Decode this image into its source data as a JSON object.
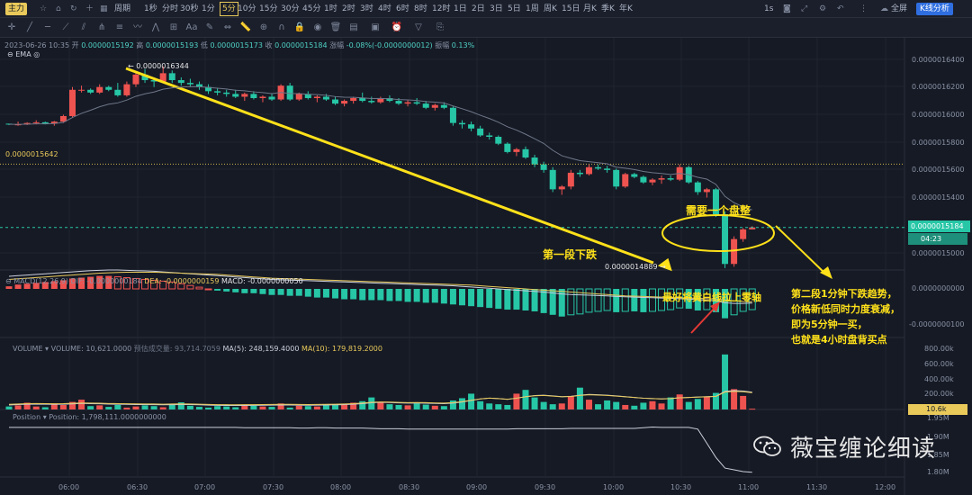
{
  "toolbar": {
    "brand": "主力",
    "period_label": "周期",
    "intervals": [
      "1秒",
      "分时",
      "30秒",
      "1分",
      "5分",
      "10分",
      "15分",
      "30分",
      "45分",
      "1时",
      "2时",
      "3时",
      "4时",
      "6时",
      "8时",
      "12时",
      "1日",
      "2日",
      "3日",
      "5日",
      "1周",
      "周K",
      "15日",
      "月K",
      "季K",
      "年K"
    ],
    "active_interval": "5分",
    "right_interval": "1s",
    "fullscreen_label": "全屏",
    "kline_analysis_label": "K线分析"
  },
  "tools": {
    "indicator_label": "Aa"
  },
  "header": {
    "datetime": "2023-06-26 10:35",
    "open_label": "开",
    "open": "0.0000015192",
    "high_label": "高",
    "high": "0.0000015193",
    "low_label": "低",
    "low": "0.0000015173",
    "close_label": "收",
    "close": "0.0000015184",
    "change_label": "涨幅",
    "change": "-0.08%(-0.0000000012)",
    "amplitude_label": "振幅",
    "amplitude": "0.13%",
    "ema_label": "EMA"
  },
  "price_axis": {
    "ticks": [
      "0.0000016400",
      "0.0000016200",
      "0.0000016000",
      "0.0000015800",
      "0.0000015600",
      "0.0000015400",
      "0.0000015184",
      "0.0000015000"
    ],
    "current_price": "0.0000015184",
    "countdown": "04:23",
    "hline_label": "0.0000015642",
    "high_marker": "← 0.0000016344",
    "low_marker": "0.0000014889 →"
  },
  "macd": {
    "title": "MACD(12,26,9)",
    "dif": "DIF: -0.0000000184",
    "dea": "DEA: -0.0000000159",
    "macd": "MACD: -0.0000000050",
    "ticks": [
      "0.0000000000",
      "-0.0000000100"
    ]
  },
  "volume": {
    "title": "VOLUME",
    "volume": "VOLUME: 10,621.0000",
    "est": "预估成交量: 93,714.7059",
    "ma5": "MA(5): 248,159.4000",
    "ma10": "MA(10): 179,819.2000",
    "ticks": [
      "800.00k",
      "600.00k",
      "400.00k",
      "200.00k"
    ],
    "current": "10.6k"
  },
  "position": {
    "title": "Position",
    "value": "Position: 1,798,111.0000000000",
    "ticks": [
      "1.95M",
      "1.90M",
      "1.85M",
      "1.80M"
    ]
  },
  "time_axis": [
    "06:00",
    "06:30",
    "07:00",
    "07:30",
    "08:00",
    "08:30",
    "09:00",
    "09:30",
    "10:00",
    "10:30",
    "11:00",
    "11:30",
    "12:00"
  ],
  "annotations": {
    "first_drop": "第一段下跌",
    "need_consolidation": "需要一个盘整",
    "zero_axis": "最好将黄白线拉上零轴",
    "second_line1": "第二段1分钟下跌趋势，",
    "second_line2": "价格新低同时力度衰减，",
    "second_line3": "即为5分钟一买，",
    "second_line4": "也就是4小时盘背买点"
  },
  "watermark": "薇宝缠论细读",
  "colors": {
    "up": "#ef5350",
    "down": "#26c6a6",
    "annotation": "#ffe11a",
    "brand": "#e8c95a",
    "active": "#2f6ee0"
  },
  "chart_data": {
    "type": "candlestick",
    "interval": "5分",
    "candles": [
      [
        1.5935,
        1.5935,
        1.5925,
        1.593
      ],
      [
        1.593,
        1.595,
        1.592,
        1.593
      ],
      [
        1.593,
        1.5945,
        1.5925,
        1.594
      ],
      [
        1.594,
        1.596,
        1.593,
        1.5945
      ],
      [
        1.5945,
        1.595,
        1.593,
        1.5935
      ],
      [
        1.5935,
        1.5955,
        1.592,
        1.595
      ],
      [
        1.595,
        1.6,
        1.594,
        1.599
      ],
      [
        1.599,
        1.62,
        1.598,
        1.618
      ],
      [
        1.618,
        1.621,
        1.616,
        1.618
      ],
      [
        1.618,
        1.619,
        1.615,
        1.616
      ],
      [
        1.616,
        1.622,
        1.615,
        1.62
      ],
      [
        1.62,
        1.621,
        1.617,
        1.618
      ],
      [
        1.618,
        1.623,
        1.613,
        1.614
      ],
      [
        1.614,
        1.624,
        1.613,
        1.622
      ],
      [
        1.622,
        1.63,
        1.62,
        1.629
      ],
      [
        1.629,
        1.633,
        1.623,
        1.625
      ],
      [
        1.625,
        1.627,
        1.62,
        1.624
      ],
      [
        1.624,
        1.635,
        1.623,
        1.63
      ],
      [
        1.63,
        1.632,
        1.623,
        1.625
      ],
      [
        1.625,
        1.627,
        1.621,
        1.623
      ],
      [
        1.623,
        1.626,
        1.62,
        1.622
      ],
      [
        1.622,
        1.624,
        1.618,
        1.62
      ],
      [
        1.62,
        1.622,
        1.615,
        1.617
      ],
      [
        1.617,
        1.619,
        1.614,
        1.616
      ],
      [
        1.616,
        1.618,
        1.613,
        1.615
      ],
      [
        1.615,
        1.618,
        1.612,
        1.613
      ],
      [
        1.613,
        1.616,
        1.61,
        1.615
      ],
      [
        1.615,
        1.617,
        1.611,
        1.612
      ],
      [
        1.612,
        1.614,
        1.609,
        1.613
      ],
      [
        1.613,
        1.615,
        1.61,
        1.611
      ],
      [
        1.611,
        1.622,
        1.61,
        1.621
      ],
      [
        1.621,
        1.623,
        1.61,
        1.611
      ],
      [
        1.611,
        1.616,
        1.61,
        1.615
      ],
      [
        1.615,
        1.617,
        1.611,
        1.612
      ],
      [
        1.612,
        1.614,
        1.609,
        1.613
      ],
      [
        1.613,
        1.615,
        1.61,
        1.611
      ],
      [
        1.611,
        1.613,
        1.607,
        1.608
      ],
      [
        1.608,
        1.611,
        1.606,
        1.61
      ],
      [
        1.61,
        1.613,
        1.608,
        1.612
      ],
      [
        1.612,
        1.616,
        1.609,
        1.61
      ],
      [
        1.61,
        1.613,
        1.608,
        1.609
      ],
      [
        1.609,
        1.613,
        1.608,
        1.612
      ],
      [
        1.612,
        1.614,
        1.609,
        1.61
      ],
      [
        1.61,
        1.612,
        1.607,
        1.608
      ],
      [
        1.608,
        1.611,
        1.606,
        1.609
      ],
      [
        1.609,
        1.612,
        1.607,
        1.608
      ],
      [
        1.608,
        1.61,
        1.604,
        1.605
      ],
      [
        1.605,
        1.608,
        1.603,
        1.607
      ],
      [
        1.607,
        1.609,
        1.604,
        1.605
      ],
      [
        1.605,
        1.606,
        1.592,
        1.594
      ],
      [
        1.594,
        1.596,
        1.59,
        1.593
      ],
      [
        1.593,
        1.595,
        1.588,
        1.59
      ],
      [
        1.59,
        1.592,
        1.584,
        1.585
      ],
      [
        1.585,
        1.587,
        1.582,
        1.584
      ],
      [
        1.584,
        1.585,
        1.578,
        1.579
      ],
      [
        1.579,
        1.58,
        1.572,
        1.573
      ],
      [
        1.573,
        1.576,
        1.57,
        1.575
      ],
      [
        1.575,
        1.577,
        1.568,
        1.569
      ],
      [
        1.569,
        1.571,
        1.562,
        1.564
      ],
      [
        1.564,
        1.566,
        1.558,
        1.56
      ],
      [
        1.56,
        1.562,
        1.544,
        1.546
      ],
      [
        1.546,
        1.549,
        1.542,
        1.548
      ],
      [
        1.548,
        1.56,
        1.546,
        1.558
      ],
      [
        1.558,
        1.56,
        1.555,
        1.557
      ],
      [
        1.557,
        1.564,
        1.556,
        1.562
      ],
      [
        1.562,
        1.564,
        1.56,
        1.561
      ],
      [
        1.561,
        1.563,
        1.558,
        1.56
      ],
      [
        1.56,
        1.561,
        1.546,
        1.548
      ],
      [
        1.548,
        1.558,
        1.547,
        1.557
      ],
      [
        1.557,
        1.558,
        1.554,
        1.555
      ],
      [
        1.555,
        1.556,
        1.55,
        1.551
      ],
      [
        1.551,
        1.554,
        1.549,
        1.553
      ],
      [
        1.553,
        1.556,
        1.55,
        1.554
      ],
      [
        1.554,
        1.556,
        1.552,
        1.553
      ],
      [
        1.553,
        1.564,
        1.552,
        1.562
      ],
      [
        1.562,
        1.563,
        1.55,
        1.551
      ],
      [
        1.551,
        1.552,
        1.542,
        1.544
      ],
      [
        1.544,
        1.547,
        1.54,
        1.546
      ],
      [
        1.546,
        1.547,
        1.526,
        1.528
      ],
      [
        1.528,
        1.53,
        1.489,
        1.492
      ],
      [
        1.492,
        1.512,
        1.49,
        1.51
      ],
      [
        1.51,
        1.518,
        1.508,
        1.517
      ],
      [
        1.517,
        1.5193,
        1.5173,
        1.5184
      ]
    ],
    "macd_hist": [
      0.3,
      0.5,
      0.6,
      0.7,
      0.8,
      0.9,
      1.0,
      1.2,
      1.3,
      1.4,
      1.5,
      1.5,
      1.4,
      1.3,
      1.2,
      1.1,
      1.0,
      0.9,
      0.8,
      0.6,
      0.4,
      0.2,
      0.0,
      -0.2,
      -0.3,
      -0.4,
      -0.5,
      -0.5,
      -0.6,
      -0.7,
      -0.7,
      -0.8,
      -0.8,
      -0.9,
      -1.0,
      -1.0,
      -1.1,
      -1.2,
      -1.2,
      -1.3,
      -1.3,
      -1.3,
      -1.4,
      -1.4,
      -1.5,
      -1.5,
      -1.6,
      -1.6,
      -1.7,
      -1.8,
      -1.9,
      -2.0,
      -2.1,
      -2.2,
      -2.3,
      -2.4,
      -2.4,
      -2.5,
      -2.6,
      -2.8,
      -3.0,
      -3.2,
      -3.0,
      -2.9,
      -2.7,
      -2.6,
      -2.5,
      -2.7,
      -2.6,
      -2.6,
      -2.7,
      -2.6,
      -2.5,
      -2.4,
      -2.2,
      -2.3,
      -2.5,
      -2.4,
      -2.7,
      -3.4,
      -3.0,
      -2.6,
      -2.4
    ],
    "macd_dif": [
      4.0,
      4.2,
      4.4,
      4.6,
      4.8,
      5.0,
      5.2,
      5.4,
      5.6,
      5.8,
      5.9,
      6.0,
      6.0,
      5.9,
      5.8,
      5.7,
      5.6,
      5.4,
      5.2,
      5.0,
      4.8,
      4.6,
      4.4,
      4.2,
      4.0,
      3.8,
      3.6,
      3.4,
      3.2,
      3.0,
      2.9,
      2.8,
      2.7,
      2.6,
      2.5,
      2.4,
      2.3,
      2.2,
      2.1,
      2.0,
      1.9,
      1.8,
      1.7,
      1.6,
      1.5,
      1.4,
      1.3,
      1.2,
      1.1,
      1.0,
      0.8,
      0.6,
      0.4,
      0.2,
      0.0,
      -0.2,
      -0.4,
      -0.6,
      -0.8,
      -1.0,
      -1.3,
      -1.6,
      -1.8,
      -1.9,
      -2.0,
      -2.1,
      -2.2,
      -2.4,
      -2.5,
      -2.6,
      -2.7,
      -2.8,
      -2.9,
      -3.0,
      -3.1,
      -3.2,
      -3.4,
      -3.6,
      -3.8,
      -4.4,
      -4.6,
      -4.6,
      -4.5
    ],
    "macd_dea": [
      3.0,
      3.2,
      3.4,
      3.6,
      3.8,
      4.0,
      4.2,
      4.4,
      4.6,
      4.8,
      5.0,
      5.1,
      5.2,
      5.3,
      5.3,
      5.3,
      5.3,
      5.2,
      5.1,
      5.0,
      4.9,
      4.8,
      4.7,
      4.6,
      4.4,
      4.2,
      4.0,
      3.8,
      3.6,
      3.4,
      3.3,
      3.2,
      3.1,
      3.0,
      2.9,
      2.8,
      2.7,
      2.6,
      2.5,
      2.4,
      2.3,
      2.2,
      2.1,
      2.0,
      1.9,
      1.8,
      1.7,
      1.6,
      1.5,
      1.4,
      1.3,
      1.2,
      1.0,
      0.8,
      0.6,
      0.4,
      0.2,
      0.0,
      -0.2,
      -0.4,
      -0.6,
      -0.8,
      -1.0,
      -1.2,
      -1.4,
      -1.6,
      -1.8,
      -2.0,
      -2.2,
      -2.3,
      -2.4,
      -2.5,
      -2.6,
      -2.7,
      -2.8,
      -2.9,
      -3.0,
      -3.1,
      -3.2,
      -3.5,
      -3.8,
      -4.0,
      -4.1
    ],
    "volume": [
      40,
      55,
      90,
      40,
      30,
      80,
      60,
      100,
      130,
      45,
      55,
      35,
      60,
      25,
      40,
      55,
      45,
      30,
      70,
      95,
      50,
      35,
      25,
      45,
      40,
      30,
      60,
      50,
      40,
      35,
      80,
      25,
      50,
      45,
      40,
      55,
      60,
      75,
      90,
      110,
      160,
      100,
      70,
      60,
      55,
      80,
      65,
      50,
      45,
      120,
      150,
      210,
      110,
      80,
      70,
      60,
      210,
      260,
      160,
      100,
      70,
      80,
      180,
      290,
      130,
      70,
      120,
      100,
      60,
      50,
      90,
      110,
      80,
      160,
      200,
      100,
      140,
      170,
      220,
      730,
      270,
      180,
      10.6
    ],
    "volume_ma": [
      60,
      65,
      70,
      72,
      70,
      68,
      70,
      75,
      80,
      78,
      76,
      72,
      70,
      68,
      66,
      65,
      64,
      62,
      64,
      66,
      65,
      62,
      58,
      55,
      54,
      53,
      54,
      55,
      56,
      58,
      60,
      59,
      58,
      57,
      58,
      60,
      62,
      65,
      70,
      78,
      90,
      95,
      92,
      88,
      85,
      86,
      84,
      80,
      78,
      85,
      100,
      120,
      140,
      150,
      145,
      135,
      150,
      170,
      185,
      190,
      180,
      170,
      175,
      190,
      200,
      195,
      190,
      180,
      170,
      160,
      150,
      145,
      140,
      145,
      155,
      160,
      165,
      170,
      175,
      240,
      250,
      245,
      230
    ],
    "position": [
      1.925,
      1.925,
      1.925,
      1.925,
      1.925,
      1.925,
      1.925,
      1.925,
      1.925,
      1.925,
      1.925,
      1.925,
      1.925,
      1.925,
      1.925,
      1.925,
      1.925,
      1.925,
      1.925,
      1.925,
      1.925,
      1.925,
      1.925,
      1.925,
      1.925,
      1.925,
      1.924,
      1.924,
      1.924,
      1.924,
      1.924,
      1.924,
      1.923,
      1.923,
      1.924,
      1.924,
      1.923,
      1.923,
      1.923,
      1.923,
      1.922,
      1.921,
      1.921,
      1.921,
      1.92,
      1.92,
      1.92,
      1.92,
      1.92,
      1.92,
      1.92,
      1.92,
      1.92,
      1.92,
      1.92,
      1.92,
      1.921,
      1.921,
      1.921,
      1.921,
      1.921,
      1.921,
      1.922,
      1.922,
      1.922,
      1.922,
      1.922,
      1.922,
      1.922,
      1.922,
      1.924,
      1.926,
      1.925,
      1.925,
      1.925,
      1.925,
      1.92,
      1.88,
      1.84,
      1.81,
      1.805,
      1.8,
      1.798
    ]
  }
}
